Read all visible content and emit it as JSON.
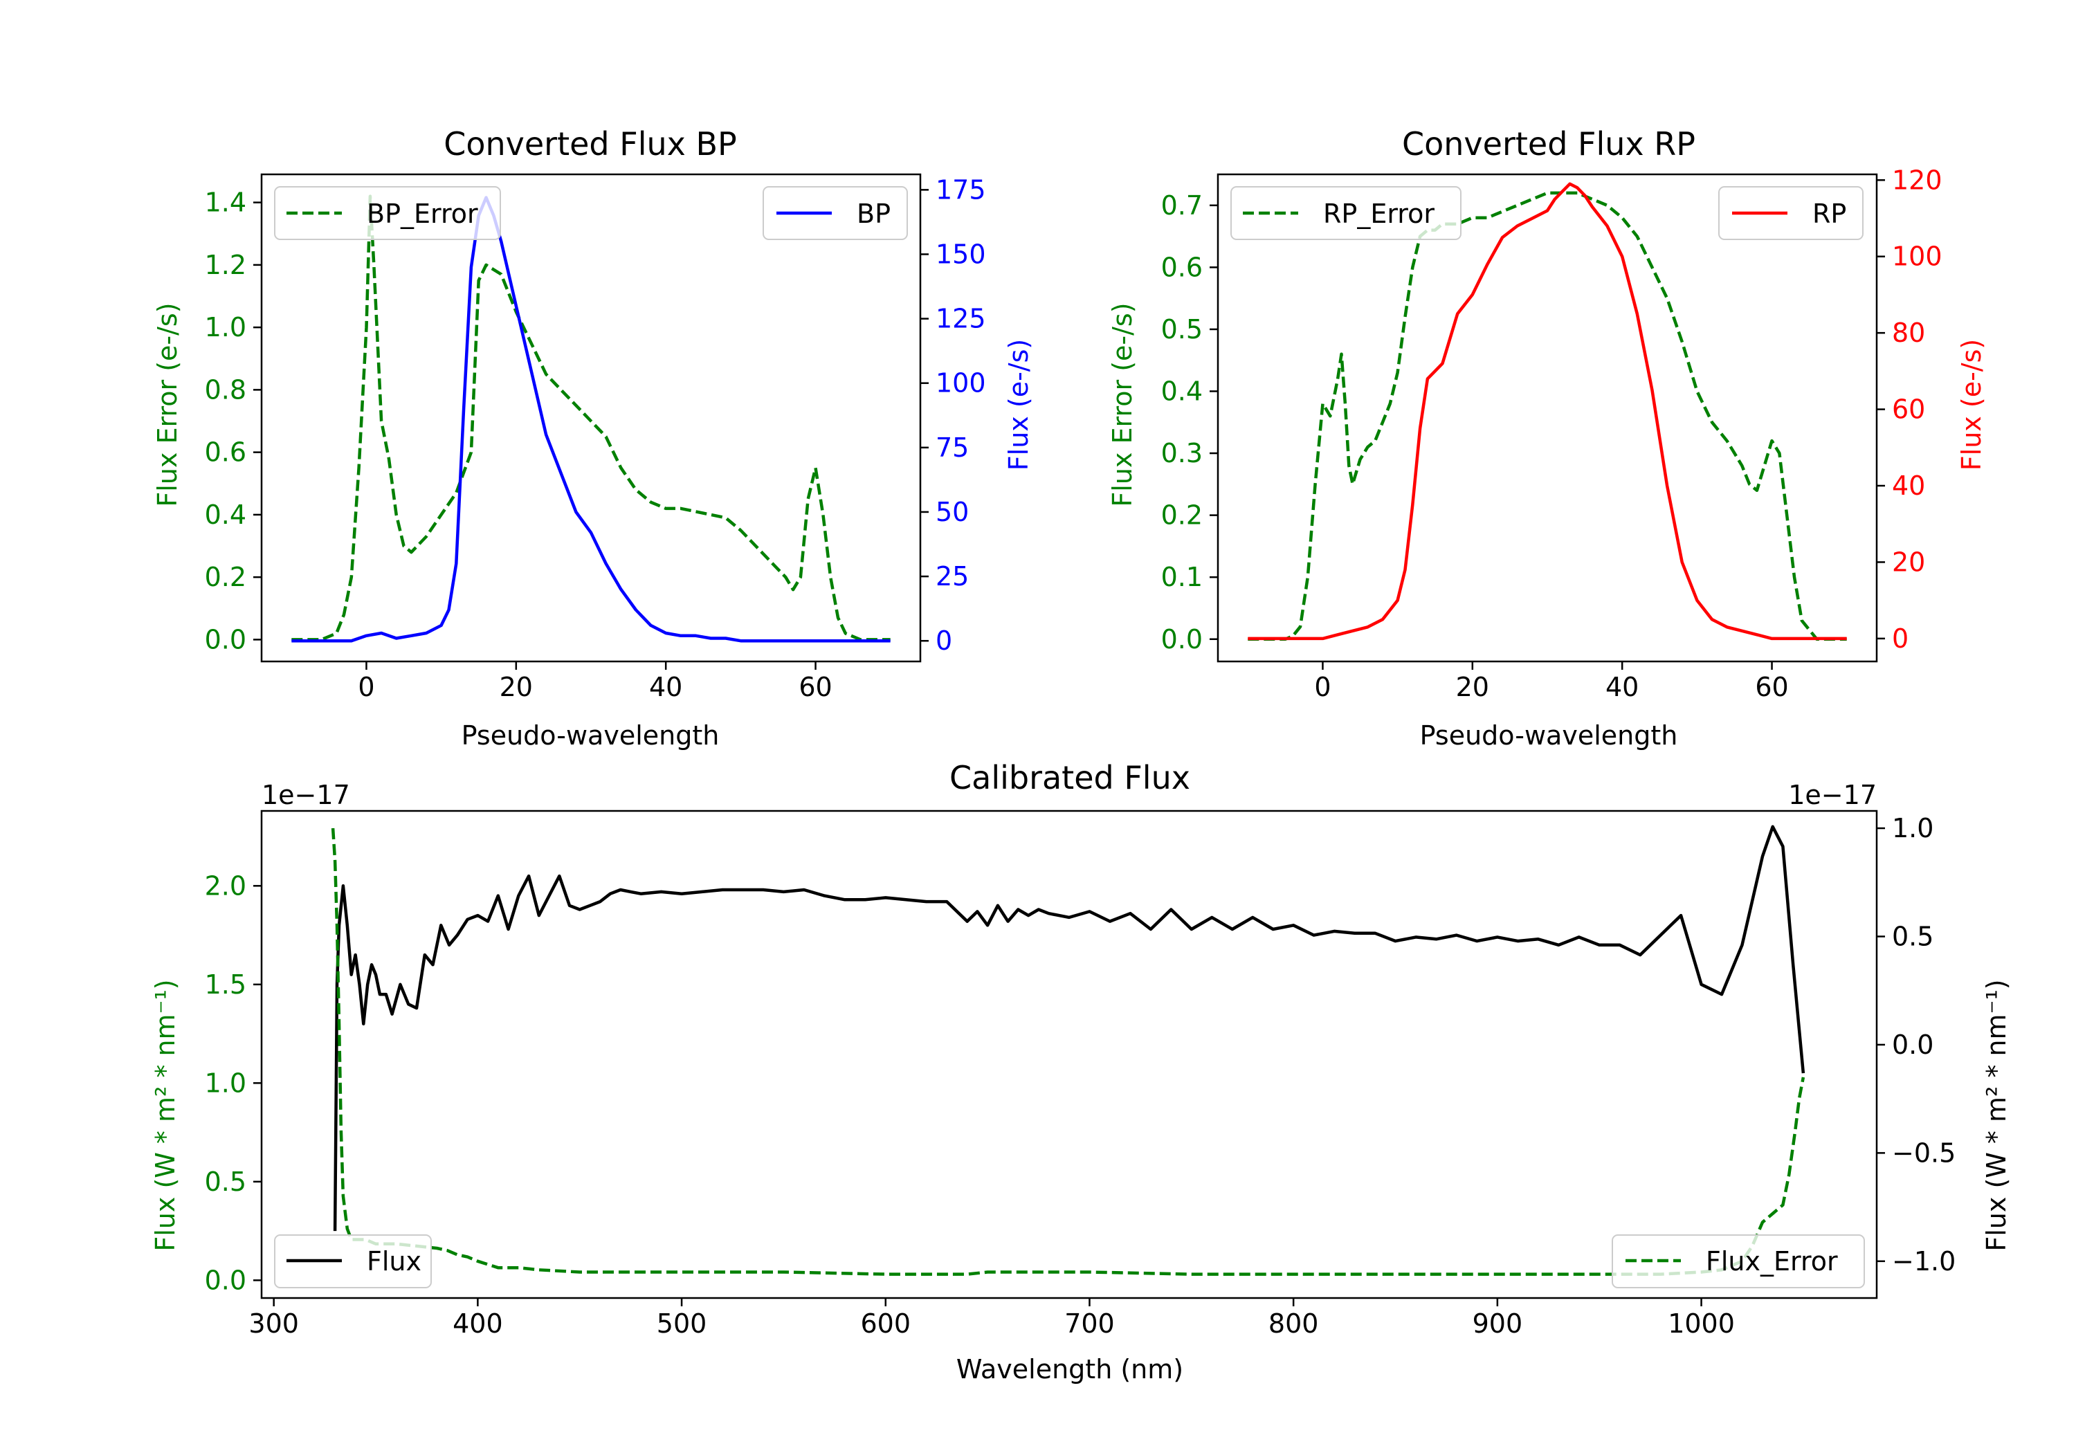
{
  "colors": {
    "green": "#008000",
    "blue": "#0000ff",
    "red": "#ff0000",
    "black": "#000000"
  },
  "chart_data": [
    {
      "id": "bp",
      "type": "line",
      "title": "Converted Flux BP",
      "xlabel": "Pseudo-wavelength",
      "ylabel_left": "Flux Error (e-/s)",
      "ylabel_right": "Flux (e-/s)",
      "xlim": [
        -14,
        74
      ],
      "ylim_left": [
        -0.07,
        1.49
      ],
      "ylim_right": [
        -8,
        181
      ],
      "xticks": [
        0,
        20,
        40,
        60
      ],
      "yticks_left": [
        0.0,
        0.2,
        0.4,
        0.6,
        0.8,
        1.0,
        1.2,
        1.4
      ],
      "yticks_right": [
        0,
        25,
        50,
        75,
        100,
        125,
        150,
        175
      ],
      "left_color": "#008000",
      "right_color": "#0000ff",
      "legend_left": "BP_Error",
      "legend_right": "BP",
      "series": [
        {
          "name": "BP_Error",
          "axis": "left",
          "style": "dashed",
          "color": "#008000",
          "x": [
            -10,
            -6,
            -4,
            -3,
            -2,
            -1,
            0,
            0.5,
            1,
            1.5,
            2,
            3,
            4,
            5,
            6,
            8,
            10,
            12,
            14,
            15,
            16,
            18,
            20,
            22,
            24,
            26,
            28,
            30,
            32,
            34,
            36,
            38,
            40,
            42,
            44,
            46,
            48,
            50,
            52,
            54,
            56,
            57,
            58,
            59,
            60,
            61,
            62,
            63,
            64,
            66,
            70
          ],
          "y": [
            0,
            0,
            0.02,
            0.08,
            0.2,
            0.55,
            1.0,
            1.42,
            1.2,
            0.95,
            0.7,
            0.58,
            0.4,
            0.3,
            0.28,
            0.33,
            0.4,
            0.47,
            0.6,
            1.15,
            1.2,
            1.17,
            1.05,
            0.95,
            0.85,
            0.8,
            0.75,
            0.7,
            0.65,
            0.55,
            0.48,
            0.44,
            0.42,
            0.42,
            0.41,
            0.4,
            0.39,
            0.35,
            0.3,
            0.25,
            0.2,
            0.16,
            0.2,
            0.45,
            0.55,
            0.4,
            0.2,
            0.07,
            0.02,
            0,
            0
          ]
        },
        {
          "name": "BP",
          "axis": "right",
          "style": "solid",
          "color": "#0000ff",
          "x": [
            -10,
            -2,
            0,
            2,
            4,
            6,
            8,
            10,
            11,
            12,
            13,
            14,
            15,
            16,
            17,
            18,
            20,
            22,
            24,
            26,
            28,
            30,
            32,
            34,
            36,
            38,
            40,
            42,
            44,
            46,
            48,
            50,
            52,
            54,
            56,
            58,
            60,
            62,
            64,
            66,
            70
          ],
          "y": [
            0,
            0,
            2,
            3,
            1,
            2,
            3,
            6,
            12,
            30,
            90,
            145,
            165,
            172,
            165,
            155,
            130,
            105,
            80,
            65,
            50,
            42,
            30,
            20,
            12,
            6,
            3,
            2,
            2,
            1,
            1,
            0,
            0,
            0,
            0,
            0,
            0,
            0,
            0,
            0,
            0
          ]
        }
      ]
    },
    {
      "id": "rp",
      "type": "line",
      "title": "Converted Flux RP",
      "xlabel": "Pseudo-wavelength",
      "ylabel_left": "Flux Error (e-/s)",
      "ylabel_right": "Flux (e-/s)",
      "xlim": [
        -14,
        74
      ],
      "ylim_left": [
        -0.036,
        0.75
      ],
      "ylim_right": [
        -6,
        121.5
      ],
      "xticks": [
        0,
        20,
        40,
        60
      ],
      "yticks_left": [
        0.0,
        0.1,
        0.2,
        0.3,
        0.4,
        0.5,
        0.6,
        0.7
      ],
      "yticks_right": [
        0,
        20,
        40,
        60,
        80,
        100,
        120
      ],
      "left_color": "#008000",
      "right_color": "#ff0000",
      "legend_left": "RP_Error",
      "legend_right": "RP",
      "series": [
        {
          "name": "RP_Error",
          "axis": "left",
          "style": "dashed",
          "color": "#008000",
          "x": [
            -10,
            -5,
            -4,
            -3,
            -2,
            -1,
            0,
            1,
            2,
            2.5,
            3,
            3.5,
            4,
            5,
            6,
            7,
            8,
            9,
            10,
            11,
            12,
            13,
            14,
            15,
            16,
            18,
            20,
            22,
            24,
            26,
            28,
            30,
            32,
            34,
            36,
            38,
            40,
            42,
            44,
            46,
            48,
            50,
            52,
            54,
            55,
            56,
            57,
            58,
            59,
            60,
            61,
            62,
            63,
            64,
            66,
            70
          ],
          "y": [
            0,
            0,
            0.005,
            0.02,
            0.1,
            0.25,
            0.38,
            0.36,
            0.42,
            0.46,
            0.38,
            0.28,
            0.25,
            0.29,
            0.31,
            0.32,
            0.35,
            0.38,
            0.43,
            0.52,
            0.6,
            0.65,
            0.66,
            0.66,
            0.67,
            0.67,
            0.68,
            0.68,
            0.69,
            0.7,
            0.71,
            0.72,
            0.72,
            0.72,
            0.71,
            0.7,
            0.68,
            0.65,
            0.6,
            0.55,
            0.48,
            0.4,
            0.35,
            0.32,
            0.3,
            0.28,
            0.25,
            0.24,
            0.28,
            0.32,
            0.3,
            0.2,
            0.1,
            0.03,
            0,
            0
          ]
        },
        {
          "name": "RP",
          "axis": "right",
          "style": "solid",
          "color": "#ff0000",
          "x": [
            -10,
            -2,
            0,
            2,
            4,
            6,
            8,
            10,
            11,
            12,
            13,
            14,
            15,
            16,
            18,
            20,
            22,
            24,
            26,
            28,
            30,
            31,
            32,
            33,
            34,
            35,
            36,
            38,
            40,
            42,
            44,
            46,
            48,
            50,
            52,
            54,
            56,
            58,
            60,
            62,
            64,
            66,
            70
          ],
          "y": [
            0,
            0,
            0,
            1,
            2,
            3,
            5,
            10,
            18,
            35,
            55,
            68,
            70,
            72,
            85,
            90,
            98,
            105,
            108,
            110,
            112,
            115,
            117,
            119,
            118,
            116,
            113,
            108,
            100,
            85,
            65,
            40,
            20,
            10,
            5,
            3,
            2,
            1,
            0,
            0,
            0,
            0,
            0
          ]
        }
      ]
    },
    {
      "id": "cal",
      "type": "line",
      "title": "Calibrated Flux",
      "xlabel": "Wavelength (nm)",
      "ylabel_left": "Flux (W * m² * nm⁻¹)",
      "ylabel_right": "Flux (W * m² * nm⁻¹)",
      "offset_left": "1e−17",
      "offset_right": "1e−17",
      "xlim": [
        294,
        1086
      ],
      "ylim_left": [
        -0.09,
        2.38
      ],
      "ylim_right": [
        -1.17,
        1.08
      ],
      "xticks": [
        300,
        400,
        500,
        600,
        700,
        800,
        900,
        1000
      ],
      "yticks_left": [
        0.0,
        0.5,
        1.0,
        1.5,
        2.0
      ],
      "yticks_right": [
        -1.0,
        -0.5,
        0.0,
        0.5,
        1.0
      ],
      "ytick_labels_right": [
        "−1.0",
        "−0.5",
        "0.0",
        "0.5",
        "1.0"
      ],
      "left_color": "#008000",
      "right_color": "#000000",
      "legend_left": "Flux",
      "legend_right": "Flux_Error",
      "series": [
        {
          "name": "Flux",
          "axis": "left",
          "style": "solid",
          "color": "#000000",
          "x": [
            330,
            331,
            332,
            334,
            336,
            338,
            340,
            342,
            344,
            346,
            348,
            350,
            352,
            355,
            358,
            362,
            366,
            370,
            374,
            378,
            382,
            386,
            390,
            395,
            400,
            405,
            410,
            415,
            420,
            425,
            430,
            435,
            440,
            445,
            450,
            455,
            460,
            465,
            470,
            475,
            480,
            490,
            500,
            510,
            520,
            530,
            540,
            550,
            560,
            570,
            580,
            590,
            600,
            610,
            620,
            630,
            640,
            645,
            650,
            655,
            660,
            665,
            670,
            675,
            680,
            690,
            700,
            710,
            720,
            730,
            740,
            750,
            760,
            770,
            780,
            790,
            800,
            810,
            820,
            830,
            840,
            850,
            860,
            870,
            880,
            890,
            900,
            910,
            920,
            930,
            940,
            950,
            960,
            970,
            980,
            990,
            1000,
            1010,
            1020,
            1030,
            1035,
            1040,
            1045,
            1050
          ],
          "y": [
            0.25,
            1.5,
            1.8,
            2.0,
            1.8,
            1.55,
            1.65,
            1.5,
            1.3,
            1.5,
            1.6,
            1.55,
            1.45,
            1.45,
            1.35,
            1.5,
            1.4,
            1.38,
            1.65,
            1.6,
            1.8,
            1.7,
            1.75,
            1.83,
            1.85,
            1.82,
            1.95,
            1.78,
            1.95,
            2.05,
            1.85,
            1.95,
            2.05,
            1.9,
            1.88,
            1.9,
            1.92,
            1.96,
            1.98,
            1.97,
            1.96,
            1.97,
            1.96,
            1.97,
            1.98,
            1.98,
            1.98,
            1.97,
            1.98,
            1.95,
            1.93,
            1.93,
            1.94,
            1.93,
            1.92,
            1.92,
            1.82,
            1.87,
            1.8,
            1.9,
            1.82,
            1.88,
            1.85,
            1.88,
            1.86,
            1.84,
            1.87,
            1.82,
            1.86,
            1.78,
            1.88,
            1.78,
            1.84,
            1.78,
            1.84,
            1.78,
            1.8,
            1.75,
            1.77,
            1.76,
            1.76,
            1.72,
            1.74,
            1.73,
            1.75,
            1.72,
            1.74,
            1.72,
            1.73,
            1.7,
            1.74,
            1.7,
            1.7,
            1.65,
            1.75,
            1.85,
            1.5,
            1.45,
            1.7,
            2.15,
            2.3,
            2.2,
            1.6,
            1.05
          ]
        },
        {
          "name": "Flux_Error",
          "axis": "right",
          "style": "dashed",
          "color": "#008000",
          "x": [
            329,
            330,
            331,
            332,
            333,
            334,
            336,
            338,
            340,
            345,
            350,
            360,
            370,
            380,
            385,
            390,
            395,
            400,
            410,
            420,
            430,
            450,
            500,
            550,
            600,
            640,
            650,
            700,
            750,
            800,
            850,
            900,
            950,
            980,
            1000,
            1010,
            1020,
            1025,
            1030,
            1035,
            1040,
            1043,
            1046,
            1048,
            1050
          ],
          "y": [
            1.0,
            0.85,
            0.55,
            0.1,
            -0.4,
            -0.7,
            -0.85,
            -0.9,
            -0.9,
            -0.9,
            -0.92,
            -0.92,
            -0.93,
            -0.94,
            -0.95,
            -0.97,
            -0.98,
            -1.0,
            -1.03,
            -1.03,
            -1.04,
            -1.05,
            -1.05,
            -1.05,
            -1.06,
            -1.06,
            -1.05,
            -1.05,
            -1.06,
            -1.06,
            -1.06,
            -1.06,
            -1.06,
            -1.06,
            -1.05,
            -1.04,
            -1.0,
            -0.93,
            -0.82,
            -0.78,
            -0.74,
            -0.6,
            -0.4,
            -0.25,
            -0.15
          ]
        }
      ]
    }
  ]
}
